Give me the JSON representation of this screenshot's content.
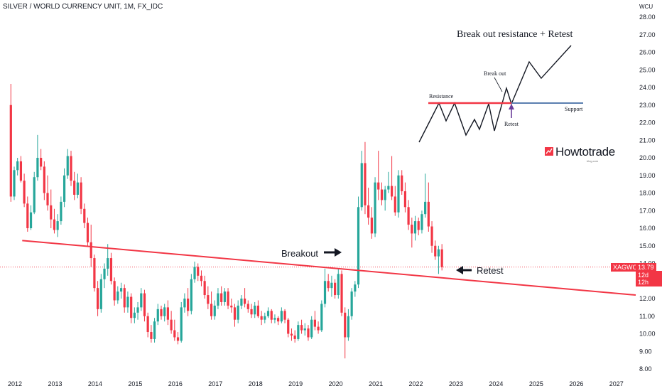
{
  "header": {
    "symbol_title": "SILVER / WORLD CURRENCY UNIT, 1M, FX_IDC"
  },
  "axis": {
    "unit_label": "WCU"
  },
  "price_tag": {
    "symbol": "XAGWCU",
    "price": "13.79",
    "countdown": "12d 12h"
  },
  "annotations": {
    "breakout": "Breakout",
    "retest": "Retest"
  },
  "inset": {
    "title": "Break out resistance + Retest",
    "resistance": "Resistance",
    "support": "Support",
    "break_out": "Break out",
    "retest": "Retest"
  },
  "logo": {
    "brand": "Howtotrade",
    "sub": "blog.com"
  },
  "colors": {
    "up": "#26a69a",
    "down": "#f23645",
    "trendline": "#f23645",
    "support": "#5b7fb0",
    "text": "#131722"
  },
  "chart_data": {
    "type": "candlestick",
    "title": "SILVER / WORLD CURRENCY UNIT, 1M, FX_IDC",
    "ylabel": "WCU",
    "ylim": [
      7.5,
      28.4
    ],
    "yticks": [
      8,
      9,
      10,
      11,
      12,
      13,
      14,
      15,
      16,
      17,
      18,
      19,
      20,
      21,
      22,
      23,
      24,
      25,
      26,
      27,
      28
    ],
    "xticks": [
      "2012",
      "2013",
      "2014",
      "2015",
      "2016",
      "2017",
      "2018",
      "2019",
      "2020",
      "2021",
      "2022",
      "2023",
      "2024",
      "2025",
      "2026",
      "2027"
    ],
    "x_start": 2012.0,
    "x_end": 2027.5,
    "last_price": 13.79,
    "trendline": {
      "from": [
        2012.2,
        15.3
      ],
      "to": [
        2027.5,
        12.2
      ]
    },
    "candles": [
      {
        "t": 2011.917,
        "o": 23.0,
        "h": 24.2,
        "l": 17.5,
        "c": 17.8
      },
      {
        "t": 2012.0,
        "o": 17.8,
        "h": 19.5,
        "l": 17.6,
        "c": 19.3
      },
      {
        "t": 2012.083,
        "o": 19.3,
        "h": 20.0,
        "l": 19.0,
        "c": 19.8
      },
      {
        "t": 2012.167,
        "o": 19.8,
        "h": 20.1,
        "l": 18.6,
        "c": 18.7
      },
      {
        "t": 2012.25,
        "o": 18.7,
        "h": 19.1,
        "l": 17.2,
        "c": 17.4
      },
      {
        "t": 2012.333,
        "o": 17.4,
        "h": 17.8,
        "l": 15.8,
        "c": 16.0
      },
      {
        "t": 2012.417,
        "o": 16.0,
        "h": 17.3,
        "l": 15.9,
        "c": 16.9
      },
      {
        "t": 2012.5,
        "o": 16.9,
        "h": 19.2,
        "l": 16.8,
        "c": 18.9
      },
      {
        "t": 2012.583,
        "o": 18.9,
        "h": 21.3,
        "l": 18.7,
        "c": 20.0
      },
      {
        "t": 2012.667,
        "o": 20.0,
        "h": 20.5,
        "l": 19.3,
        "c": 19.5
      },
      {
        "t": 2012.75,
        "o": 19.5,
        "h": 19.8,
        "l": 17.6,
        "c": 18.0
      },
      {
        "t": 2012.833,
        "o": 18.0,
        "h": 19.0,
        "l": 17.0,
        "c": 17.3
      },
      {
        "t": 2012.917,
        "o": 17.3,
        "h": 18.2,
        "l": 16.0,
        "c": 16.5
      },
      {
        "t": 2013.0,
        "o": 16.5,
        "h": 17.1,
        "l": 15.7,
        "c": 15.9
      },
      {
        "t": 2013.083,
        "o": 15.9,
        "h": 16.8,
        "l": 15.5,
        "c": 16.4
      },
      {
        "t": 2013.167,
        "o": 16.4,
        "h": 17.8,
        "l": 16.2,
        "c": 17.5
      },
      {
        "t": 2013.25,
        "o": 17.5,
        "h": 19.4,
        "l": 17.2,
        "c": 19.0
      },
      {
        "t": 2013.333,
        "o": 19.0,
        "h": 20.5,
        "l": 18.8,
        "c": 20.1
      },
      {
        "t": 2013.417,
        "o": 20.1,
        "h": 20.4,
        "l": 18.4,
        "c": 18.7
      },
      {
        "t": 2013.5,
        "o": 18.7,
        "h": 19.2,
        "l": 17.6,
        "c": 17.9
      },
      {
        "t": 2013.583,
        "o": 17.9,
        "h": 19.1,
        "l": 17.7,
        "c": 18.6
      },
      {
        "t": 2013.667,
        "o": 18.6,
        "h": 18.9,
        "l": 16.8,
        "c": 17.1
      },
      {
        "t": 2013.75,
        "o": 17.1,
        "h": 17.4,
        "l": 16.0,
        "c": 16.3
      },
      {
        "t": 2013.833,
        "o": 16.3,
        "h": 16.6,
        "l": 15.0,
        "c": 15.2
      },
      {
        "t": 2013.917,
        "o": 15.2,
        "h": 16.2,
        "l": 13.8,
        "c": 14.3
      },
      {
        "t": 2014.0,
        "o": 14.3,
        "h": 14.5,
        "l": 12.4,
        "c": 12.6
      },
      {
        "t": 2014.083,
        "o": 12.6,
        "h": 13.0,
        "l": 11.0,
        "c": 11.4
      },
      {
        "t": 2014.167,
        "o": 11.4,
        "h": 13.4,
        "l": 11.2,
        "c": 13.1
      },
      {
        "t": 2014.25,
        "o": 13.1,
        "h": 14.0,
        "l": 12.6,
        "c": 13.7
      },
      {
        "t": 2014.333,
        "o": 13.7,
        "h": 15.1,
        "l": 13.3,
        "c": 14.3
      },
      {
        "t": 2014.417,
        "o": 14.3,
        "h": 14.6,
        "l": 12.8,
        "c": 13.0
      },
      {
        "t": 2014.5,
        "o": 13.0,
        "h": 13.2,
        "l": 11.6,
        "c": 11.9
      },
      {
        "t": 2014.583,
        "o": 11.9,
        "h": 12.7,
        "l": 11.7,
        "c": 12.4
      },
      {
        "t": 2014.667,
        "o": 12.4,
        "h": 12.9,
        "l": 12.0,
        "c": 12.6
      },
      {
        "t": 2014.75,
        "o": 12.6,
        "h": 12.8,
        "l": 11.2,
        "c": 11.5
      },
      {
        "t": 2014.833,
        "o": 11.5,
        "h": 12.4,
        "l": 11.2,
        "c": 12.1
      },
      {
        "t": 2014.917,
        "o": 12.1,
        "h": 12.3,
        "l": 10.6,
        "c": 10.9
      },
      {
        "t": 2015.0,
        "o": 10.9,
        "h": 11.5,
        "l": 10.6,
        "c": 11.2
      },
      {
        "t": 2015.083,
        "o": 11.2,
        "h": 11.8,
        "l": 10.8,
        "c": 11.5
      },
      {
        "t": 2015.167,
        "o": 11.5,
        "h": 12.6,
        "l": 11.3,
        "c": 12.3
      },
      {
        "t": 2015.25,
        "o": 12.3,
        "h": 12.5,
        "l": 10.7,
        "c": 11.0
      },
      {
        "t": 2015.333,
        "o": 11.0,
        "h": 11.2,
        "l": 9.8,
        "c": 10.1
      },
      {
        "t": 2015.417,
        "o": 10.1,
        "h": 10.5,
        "l": 9.5,
        "c": 9.7
      },
      {
        "t": 2015.5,
        "o": 9.7,
        "h": 10.9,
        "l": 9.5,
        "c": 10.7
      },
      {
        "t": 2015.583,
        "o": 10.7,
        "h": 11.7,
        "l": 10.5,
        "c": 11.4
      },
      {
        "t": 2015.667,
        "o": 11.4,
        "h": 11.6,
        "l": 10.8,
        "c": 11.0
      },
      {
        "t": 2015.75,
        "o": 11.0,
        "h": 11.7,
        "l": 10.7,
        "c": 11.5
      },
      {
        "t": 2015.833,
        "o": 11.5,
        "h": 11.9,
        "l": 10.5,
        "c": 10.8
      },
      {
        "t": 2015.917,
        "o": 10.8,
        "h": 11.3,
        "l": 10.0,
        "c": 10.2
      },
      {
        "t": 2016.0,
        "o": 10.2,
        "h": 10.8,
        "l": 9.6,
        "c": 9.8
      },
      {
        "t": 2016.083,
        "o": 9.8,
        "h": 10.1,
        "l": 9.4,
        "c": 9.6
      },
      {
        "t": 2016.167,
        "o": 9.6,
        "h": 11.8,
        "l": 9.5,
        "c": 11.5
      },
      {
        "t": 2016.25,
        "o": 11.5,
        "h": 12.3,
        "l": 11.2,
        "c": 12.0
      },
      {
        "t": 2016.333,
        "o": 12.0,
        "h": 12.6,
        "l": 11.0,
        "c": 11.3
      },
      {
        "t": 2016.417,
        "o": 11.3,
        "h": 13.4,
        "l": 11.1,
        "c": 13.1
      },
      {
        "t": 2016.5,
        "o": 13.1,
        "h": 14.1,
        "l": 12.9,
        "c": 13.8
      },
      {
        "t": 2016.583,
        "o": 13.8,
        "h": 14.0,
        "l": 13.0,
        "c": 13.3
      },
      {
        "t": 2016.667,
        "o": 13.3,
        "h": 13.6,
        "l": 12.7,
        "c": 13.0
      },
      {
        "t": 2016.75,
        "o": 13.0,
        "h": 13.3,
        "l": 12.0,
        "c": 12.2
      },
      {
        "t": 2016.833,
        "o": 12.2,
        "h": 12.7,
        "l": 11.4,
        "c": 11.7
      },
      {
        "t": 2016.917,
        "o": 11.7,
        "h": 12.4,
        "l": 10.8,
        "c": 11.0
      },
      {
        "t": 2017.0,
        "o": 11.0,
        "h": 11.9,
        "l": 10.8,
        "c": 11.6
      },
      {
        "t": 2017.083,
        "o": 11.6,
        "h": 12.6,
        "l": 11.4,
        "c": 12.3
      },
      {
        "t": 2017.167,
        "o": 12.3,
        "h": 12.7,
        "l": 11.6,
        "c": 11.8
      },
      {
        "t": 2017.25,
        "o": 11.8,
        "h": 12.6,
        "l": 11.6,
        "c": 12.4
      },
      {
        "t": 2017.333,
        "o": 12.4,
        "h": 12.6,
        "l": 11.4,
        "c": 11.6
      },
      {
        "t": 2017.417,
        "o": 11.6,
        "h": 12.0,
        "l": 11.2,
        "c": 11.5
      },
      {
        "t": 2017.5,
        "o": 11.5,
        "h": 11.7,
        "l": 10.4,
        "c": 10.8
      },
      {
        "t": 2017.583,
        "o": 10.8,
        "h": 11.9,
        "l": 10.6,
        "c": 11.6
      },
      {
        "t": 2017.667,
        "o": 11.6,
        "h": 12.2,
        "l": 11.4,
        "c": 12.0
      },
      {
        "t": 2017.75,
        "o": 12.0,
        "h": 12.6,
        "l": 11.5,
        "c": 11.7
      },
      {
        "t": 2017.833,
        "o": 11.7,
        "h": 11.9,
        "l": 11.2,
        "c": 11.4
      },
      {
        "t": 2017.917,
        "o": 11.4,
        "h": 11.7,
        "l": 10.9,
        "c": 11.1
      },
      {
        "t": 2018.0,
        "o": 11.1,
        "h": 11.8,
        "l": 10.9,
        "c": 11.6
      },
      {
        "t": 2018.083,
        "o": 11.6,
        "h": 11.9,
        "l": 10.9,
        "c": 11.0
      },
      {
        "t": 2018.167,
        "o": 11.0,
        "h": 11.3,
        "l": 10.5,
        "c": 10.8
      },
      {
        "t": 2018.25,
        "o": 10.8,
        "h": 11.2,
        "l": 10.6,
        "c": 11.0
      },
      {
        "t": 2018.333,
        "o": 11.0,
        "h": 11.5,
        "l": 10.9,
        "c": 11.3
      },
      {
        "t": 2018.417,
        "o": 11.3,
        "h": 11.4,
        "l": 10.6,
        "c": 10.8
      },
      {
        "t": 2018.5,
        "o": 10.8,
        "h": 11.1,
        "l": 10.6,
        "c": 10.9
      },
      {
        "t": 2018.583,
        "o": 10.9,
        "h": 11.0,
        "l": 10.5,
        "c": 10.7
      },
      {
        "t": 2018.667,
        "o": 10.7,
        "h": 11.5,
        "l": 10.6,
        "c": 11.3
      },
      {
        "t": 2018.75,
        "o": 11.3,
        "h": 11.4,
        "l": 10.6,
        "c": 10.8
      },
      {
        "t": 2018.833,
        "o": 10.8,
        "h": 10.9,
        "l": 9.8,
        "c": 10.0
      },
      {
        "t": 2018.917,
        "o": 10.0,
        "h": 10.3,
        "l": 9.6,
        "c": 9.9
      },
      {
        "t": 2019.0,
        "o": 9.9,
        "h": 10.2,
        "l": 9.5,
        "c": 9.7
      },
      {
        "t": 2019.083,
        "o": 9.7,
        "h": 10.7,
        "l": 9.6,
        "c": 10.5
      },
      {
        "t": 2019.167,
        "o": 10.5,
        "h": 10.8,
        "l": 10.0,
        "c": 10.2
      },
      {
        "t": 2019.25,
        "o": 10.2,
        "h": 10.6,
        "l": 9.9,
        "c": 10.3
      },
      {
        "t": 2019.333,
        "o": 10.3,
        "h": 10.5,
        "l": 9.6,
        "c": 9.8
      },
      {
        "t": 2019.417,
        "o": 9.8,
        "h": 11.0,
        "l": 9.7,
        "c": 10.8
      },
      {
        "t": 2019.5,
        "o": 10.8,
        "h": 11.3,
        "l": 10.2,
        "c": 10.4
      },
      {
        "t": 2019.583,
        "o": 10.4,
        "h": 10.7,
        "l": 10.0,
        "c": 10.2
      },
      {
        "t": 2019.667,
        "o": 10.2,
        "h": 11.9,
        "l": 10.1,
        "c": 11.7
      },
      {
        "t": 2019.75,
        "o": 11.7,
        "h": 13.7,
        "l": 11.5,
        "c": 13.0
      },
      {
        "t": 2019.833,
        "o": 13.0,
        "h": 13.4,
        "l": 12.4,
        "c": 12.6
      },
      {
        "t": 2019.917,
        "o": 12.6,
        "h": 13.3,
        "l": 12.1,
        "c": 12.9
      },
      {
        "t": 2020.0,
        "o": 12.9,
        "h": 13.1,
        "l": 12.0,
        "c": 12.2
      },
      {
        "t": 2020.083,
        "o": 12.2,
        "h": 13.7,
        "l": 12.0,
        "c": 13.4
      },
      {
        "t": 2020.167,
        "o": 13.4,
        "h": 13.6,
        "l": 11.0,
        "c": 11.2
      },
      {
        "t": 2020.25,
        "o": 11.2,
        "h": 11.5,
        "l": 8.6,
        "c": 9.8
      },
      {
        "t": 2020.333,
        "o": 9.8,
        "h": 11.4,
        "l": 9.6,
        "c": 11.0
      },
      {
        "t": 2020.417,
        "o": 11.0,
        "h": 12.6,
        "l": 10.8,
        "c": 12.4
      },
      {
        "t": 2020.5,
        "o": 12.4,
        "h": 13.0,
        "l": 12.1,
        "c": 12.8
      },
      {
        "t": 2020.583,
        "o": 12.8,
        "h": 17.8,
        "l": 12.6,
        "c": 17.2
      },
      {
        "t": 2020.667,
        "o": 17.2,
        "h": 20.4,
        "l": 17.0,
        "c": 19.7
      },
      {
        "t": 2020.75,
        "o": 19.7,
        "h": 20.9,
        "l": 16.8,
        "c": 17.3
      },
      {
        "t": 2020.833,
        "o": 17.3,
        "h": 18.3,
        "l": 16.2,
        "c": 16.6
      },
      {
        "t": 2020.917,
        "o": 16.6,
        "h": 17.2,
        "l": 15.4,
        "c": 15.7
      },
      {
        "t": 2021.0,
        "o": 15.7,
        "h": 18.9,
        "l": 15.5,
        "c": 18.6
      },
      {
        "t": 2021.083,
        "o": 18.6,
        "h": 20.4,
        "l": 17.6,
        "c": 18.2
      },
      {
        "t": 2021.167,
        "o": 18.2,
        "h": 18.6,
        "l": 17.3,
        "c": 17.6
      },
      {
        "t": 2021.25,
        "o": 17.6,
        "h": 18.4,
        "l": 17.0,
        "c": 18.2
      },
      {
        "t": 2021.333,
        "o": 18.2,
        "h": 19.2,
        "l": 18.0,
        "c": 18.4
      },
      {
        "t": 2021.417,
        "o": 18.4,
        "h": 20.1,
        "l": 17.6,
        "c": 17.8
      },
      {
        "t": 2021.5,
        "o": 17.8,
        "h": 18.4,
        "l": 16.7,
        "c": 16.9
      },
      {
        "t": 2021.583,
        "o": 16.9,
        "h": 19.3,
        "l": 16.6,
        "c": 19.0
      },
      {
        "t": 2021.667,
        "o": 19.0,
        "h": 19.3,
        "l": 17.9,
        "c": 18.1
      },
      {
        "t": 2021.75,
        "o": 18.1,
        "h": 18.6,
        "l": 16.9,
        "c": 17.2
      },
      {
        "t": 2021.833,
        "o": 17.2,
        "h": 17.6,
        "l": 15.9,
        "c": 16.2
      },
      {
        "t": 2021.917,
        "o": 16.2,
        "h": 16.6,
        "l": 14.9,
        "c": 15.7
      },
      {
        "t": 2022.0,
        "o": 15.7,
        "h": 16.7,
        "l": 15.3,
        "c": 16.4
      },
      {
        "t": 2022.083,
        "o": 16.4,
        "h": 16.6,
        "l": 15.6,
        "c": 15.9
      },
      {
        "t": 2022.167,
        "o": 15.9,
        "h": 17.0,
        "l": 15.7,
        "c": 16.8
      },
      {
        "t": 2022.25,
        "o": 16.8,
        "h": 19.1,
        "l": 16.6,
        "c": 17.5
      },
      {
        "t": 2022.333,
        "o": 17.5,
        "h": 18.6,
        "l": 15.8,
        "c": 16.1
      },
      {
        "t": 2022.417,
        "o": 16.1,
        "h": 16.4,
        "l": 14.6,
        "c": 15.0
      },
      {
        "t": 2022.5,
        "o": 15.0,
        "h": 15.3,
        "l": 14.2,
        "c": 14.4
      },
      {
        "t": 2022.583,
        "o": 14.4,
        "h": 15.0,
        "l": 13.4,
        "c": 14.8
      },
      {
        "t": 2022.667,
        "o": 14.8,
        "h": 15.1,
        "l": 13.6,
        "c": 13.79
      }
    ]
  }
}
